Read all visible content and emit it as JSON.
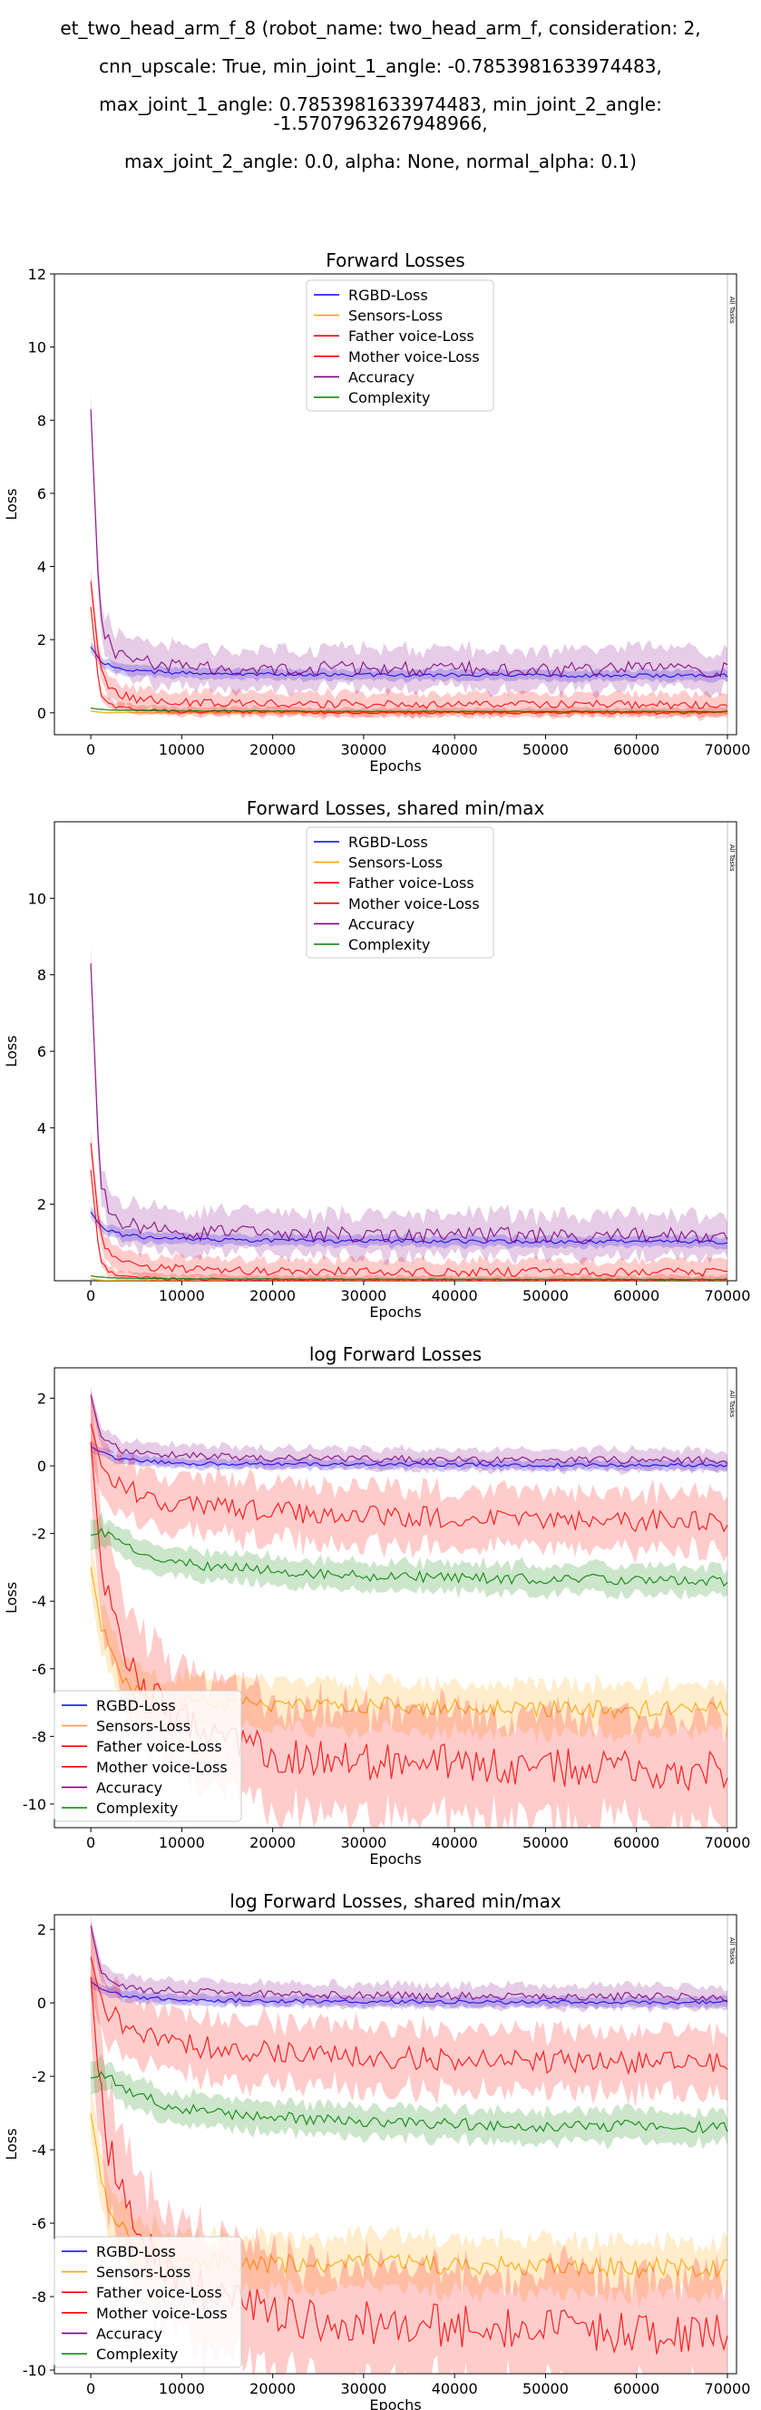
{
  "page": {
    "title_lines": [
      "et_two_head_arm_f_8 (robot_name: two_head_arm_f, consideration: 2,",
      "cnn_upscale: True, min_joint_1_angle: -0.7853981633974483,",
      "max_joint_1_angle: 0.7853981633974483, min_joint_2_angle: -1.5707963267948966,",
      "max_joint_2_angle: 0.0, alpha: None, normal_alpha: 0.1)"
    ]
  },
  "colors": {
    "RGBD-Loss": "#0000ff",
    "Sensors-Loss": "#ffa500",
    "Father voice-Loss": "#ff0000",
    "Mother voice-Loss": "#ff0000",
    "Accuracy": "#800080",
    "Complexity": "#008000"
  },
  "chart_data": [
    {
      "type": "line",
      "title": "Forward Losses",
      "xlabel": "Epochs",
      "ylabel": "Loss",
      "xlim": [
        -4000,
        71000
      ],
      "ylim": [
        -0.6,
        12
      ],
      "xticks": [
        0,
        10000,
        20000,
        30000,
        40000,
        50000,
        60000,
        70000
      ],
      "yticks": [
        0,
        2,
        4,
        6,
        8,
        10,
        12
      ],
      "log": false,
      "legend_placement": "top-center",
      "vline": {
        "x": 70000,
        "label": "All Tasks"
      },
      "series": [
        {
          "name": "RGBD-Loss",
          "x": [
            0,
            1000,
            2000,
            3000,
            5000,
            8000,
            12000,
            20000,
            30000,
            40000,
            50000,
            60000,
            70000
          ],
          "values": [
            1.8,
            1.45,
            1.3,
            1.22,
            1.15,
            1.1,
            1.07,
            1.05,
            1.04,
            1.03,
            1.02,
            1.02,
            1.02
          ],
          "band": 0.12
        },
        {
          "name": "Sensors-Loss",
          "x": [
            0,
            1000,
            3000,
            10000,
            30000,
            50000,
            70000
          ],
          "values": [
            0.05,
            0.01,
            0.003,
            0.001,
            0.001,
            0.001,
            0.001
          ],
          "band": 0.02
        },
        {
          "name": "Father voice-Loss",
          "x": [
            0,
            1000,
            2000,
            3000,
            5000,
            10000,
            20000,
            30000,
            40000,
            50000,
            60000,
            70000
          ],
          "values": [
            3.6,
            1.2,
            0.7,
            0.5,
            0.38,
            0.3,
            0.26,
            0.24,
            0.23,
            0.23,
            0.22,
            0.22
          ],
          "band": 0.25
        },
        {
          "name": "Mother voice-Loss",
          "x": [
            0,
            1000,
            2000,
            3000,
            5000,
            10000,
            20000,
            30000,
            40000,
            50000,
            60000,
            70000
          ],
          "values": [
            2.9,
            0.5,
            0.25,
            0.15,
            0.08,
            0.04,
            0.02,
            0.01,
            0.01,
            0.01,
            0.01,
            0.01
          ],
          "band": 0.1
        },
        {
          "name": "Accuracy",
          "x": [
            0,
            1000,
            2000,
            3000,
            5000,
            8000,
            12000,
            20000,
            30000,
            40000,
            50000,
            60000,
            70000
          ],
          "values": [
            8.3,
            2.6,
            1.9,
            1.6,
            1.4,
            1.3,
            1.25,
            1.22,
            1.2,
            1.2,
            1.19,
            1.19,
            1.18
          ],
          "band": 0.45
        },
        {
          "name": "Complexity",
          "x": [
            0,
            1000,
            3000,
            10000,
            30000,
            50000,
            70000
          ],
          "values": [
            0.13,
            0.09,
            0.07,
            0.05,
            0.04,
            0.035,
            0.03
          ],
          "band": 0.02
        }
      ]
    },
    {
      "type": "line",
      "title": "Forward Losses, shared min/max",
      "xlabel": "Epochs",
      "ylabel": "Loss",
      "xlim": [
        -4000,
        71000
      ],
      "ylim": [
        0,
        12
      ],
      "xticks": [
        0,
        10000,
        20000,
        30000,
        40000,
        50000,
        60000,
        70000
      ],
      "yticks": [
        2,
        4,
        6,
        8,
        10
      ],
      "log": false,
      "legend_placement": "top-center",
      "vline": {
        "x": 70000,
        "label": "All Tasks"
      },
      "series": [
        {
          "name": "RGBD-Loss",
          "x": [
            0,
            1000,
            2000,
            3000,
            5000,
            8000,
            12000,
            20000,
            30000,
            40000,
            50000,
            60000,
            70000
          ],
          "values": [
            1.8,
            1.45,
            1.3,
            1.22,
            1.15,
            1.1,
            1.07,
            1.05,
            1.04,
            1.03,
            1.02,
            1.02,
            1.02
          ],
          "band": 0.12
        },
        {
          "name": "Sensors-Loss",
          "x": [
            0,
            1000,
            3000,
            10000,
            30000,
            50000,
            70000
          ],
          "values": [
            0.05,
            0.01,
            0.003,
            0.001,
            0.001,
            0.001,
            0.001
          ],
          "band": 0.02
        },
        {
          "name": "Father voice-Loss",
          "x": [
            0,
            1000,
            2000,
            3000,
            5000,
            10000,
            20000,
            30000,
            40000,
            50000,
            60000,
            70000
          ],
          "values": [
            3.6,
            1.2,
            0.7,
            0.5,
            0.38,
            0.3,
            0.26,
            0.24,
            0.23,
            0.23,
            0.22,
            0.22
          ],
          "band": 0.25
        },
        {
          "name": "Mother voice-Loss",
          "x": [
            0,
            1000,
            2000,
            3000,
            5000,
            10000,
            20000,
            30000,
            40000,
            50000,
            60000,
            70000
          ],
          "values": [
            2.9,
            0.5,
            0.25,
            0.15,
            0.08,
            0.04,
            0.02,
            0.01,
            0.01,
            0.01,
            0.01,
            0.01
          ],
          "band": 0.1
        },
        {
          "name": "Accuracy",
          "x": [
            0,
            1000,
            2000,
            3000,
            5000,
            8000,
            12000,
            20000,
            30000,
            40000,
            50000,
            60000,
            70000
          ],
          "values": [
            8.3,
            2.6,
            1.9,
            1.6,
            1.4,
            1.3,
            1.25,
            1.22,
            1.2,
            1.2,
            1.19,
            1.19,
            1.18
          ],
          "band": 0.45
        },
        {
          "name": "Complexity",
          "x": [
            0,
            1000,
            3000,
            10000,
            30000,
            50000,
            70000
          ],
          "values": [
            0.13,
            0.09,
            0.07,
            0.05,
            0.04,
            0.035,
            0.03
          ],
          "band": 0.02
        }
      ]
    },
    {
      "type": "line",
      "title": "log Forward Losses",
      "xlabel": "Epochs",
      "ylabel": "Loss",
      "xlim": [
        -4000,
        71000
      ],
      "ylim": [
        -10.7,
        2.9
      ],
      "xticks": [
        0,
        10000,
        20000,
        30000,
        40000,
        50000,
        60000,
        70000
      ],
      "yticks": [
        -10,
        -8,
        -6,
        -4,
        -2,
        0,
        2
      ],
      "log": true,
      "legend_placement": "lower-left",
      "vline": {
        "x": 70000,
        "label": "All Tasks"
      },
      "series": [
        {
          "name": "RGBD-Loss",
          "x": [
            0,
            1000,
            2000,
            3000,
            5000,
            10000,
            20000,
            30000,
            40000,
            50000,
            60000,
            70000
          ],
          "values": [
            0.58,
            0.4,
            0.3,
            0.22,
            0.15,
            0.08,
            0.05,
            0.04,
            0.03,
            0.02,
            0.02,
            0.02
          ],
          "band": 0.12
        },
        {
          "name": "Sensors-Loss",
          "x": [
            0,
            1000,
            2000,
            3000,
            5000,
            8000,
            12000,
            20000,
            30000,
            40000,
            50000,
            60000,
            70000
          ],
          "values": [
            -3.0,
            -4.5,
            -5.5,
            -6.1,
            -6.6,
            -6.9,
            -7.0,
            -7.1,
            -7.1,
            -7.15,
            -7.2,
            -7.2,
            -7.2
          ],
          "band": 0.6
        },
        {
          "name": "Father voice-Loss",
          "x": [
            0,
            1000,
            2000,
            3000,
            5000,
            8000,
            12000,
            20000,
            30000,
            40000,
            50000,
            60000,
            70000
          ],
          "values": [
            1.25,
            0.2,
            -0.2,
            -0.5,
            -0.8,
            -1.05,
            -1.2,
            -1.35,
            -1.45,
            -1.55,
            -1.6,
            -1.62,
            -1.65
          ],
          "band": 0.7
        },
        {
          "name": "Mother voice-Loss",
          "x": [
            0,
            1000,
            2000,
            3000,
            4000,
            6000,
            8000,
            12000,
            16000,
            20000,
            30000,
            40000,
            50000,
            60000,
            70000
          ],
          "values": [
            0.7,
            -2.5,
            -4.0,
            -5.0,
            -5.7,
            -6.6,
            -7.2,
            -7.8,
            -8.2,
            -8.5,
            -8.7,
            -8.8,
            -8.9,
            -9.0,
            -9.05
          ],
          "band": 1.3
        },
        {
          "name": "Accuracy",
          "x": [
            0,
            1000,
            2000,
            3000,
            5000,
            10000,
            20000,
            30000,
            40000,
            50000,
            60000,
            70000
          ],
          "values": [
            2.1,
            0.95,
            0.65,
            0.5,
            0.38,
            0.3,
            0.24,
            0.21,
            0.19,
            0.18,
            0.17,
            0.16
          ],
          "band": 0.25
        },
        {
          "name": "Complexity",
          "x": [
            0,
            1000,
            2000,
            3000,
            5000,
            8000,
            12000,
            20000,
            30000,
            40000,
            50000,
            60000,
            70000
          ],
          "values": [
            -2.05,
            -2.0,
            -2.05,
            -2.2,
            -2.5,
            -2.75,
            -2.95,
            -3.1,
            -3.25,
            -3.3,
            -3.35,
            -3.35,
            -3.4
          ],
          "band": 0.35
        }
      ]
    },
    {
      "type": "line",
      "title": "log Forward Losses, shared min/max",
      "xlabel": "Epochs",
      "ylabel": "Loss",
      "xlim": [
        -4000,
        71000
      ],
      "ylim": [
        -10.1,
        2.4
      ],
      "xticks": [
        0,
        10000,
        20000,
        30000,
        40000,
        50000,
        60000,
        70000
      ],
      "yticks": [
        -10,
        -8,
        -6,
        -4,
        -2,
        0,
        2
      ],
      "log": true,
      "legend_placement": "lower-left",
      "vline": {
        "x": 70000,
        "label": "All Tasks"
      },
      "series": [
        {
          "name": "RGBD-Loss",
          "x": [
            0,
            1000,
            2000,
            3000,
            5000,
            10000,
            20000,
            30000,
            40000,
            50000,
            60000,
            70000
          ],
          "values": [
            0.58,
            0.4,
            0.3,
            0.22,
            0.15,
            0.08,
            0.05,
            0.04,
            0.03,
            0.02,
            0.02,
            0.02
          ],
          "band": 0.12
        },
        {
          "name": "Sensors-Loss",
          "x": [
            0,
            1000,
            2000,
            3000,
            5000,
            8000,
            12000,
            20000,
            30000,
            40000,
            50000,
            60000,
            70000
          ],
          "values": [
            -3.0,
            -4.5,
            -5.5,
            -6.1,
            -6.6,
            -6.9,
            -7.0,
            -7.1,
            -7.1,
            -7.15,
            -7.2,
            -7.2,
            -7.2
          ],
          "band": 0.6
        },
        {
          "name": "Father voice-Loss",
          "x": [
            0,
            1000,
            2000,
            3000,
            5000,
            8000,
            12000,
            20000,
            30000,
            40000,
            50000,
            60000,
            70000
          ],
          "values": [
            1.25,
            0.2,
            -0.2,
            -0.5,
            -0.8,
            -1.05,
            -1.2,
            -1.35,
            -1.45,
            -1.55,
            -1.6,
            -1.62,
            -1.65
          ],
          "band": 0.7
        },
        {
          "name": "Mother voice-Loss",
          "x": [
            0,
            1000,
            2000,
            3000,
            4000,
            6000,
            8000,
            12000,
            16000,
            20000,
            30000,
            40000,
            50000,
            60000,
            70000
          ],
          "values": [
            0.7,
            -2.5,
            -4.0,
            -5.0,
            -5.7,
            -6.6,
            -7.2,
            -7.8,
            -8.2,
            -8.5,
            -8.7,
            -8.8,
            -8.9,
            -9.0,
            -9.05
          ],
          "band": 1.3
        },
        {
          "name": "Accuracy",
          "x": [
            0,
            1000,
            2000,
            3000,
            5000,
            10000,
            20000,
            30000,
            40000,
            50000,
            60000,
            70000
          ],
          "values": [
            2.1,
            0.95,
            0.65,
            0.5,
            0.38,
            0.3,
            0.24,
            0.21,
            0.19,
            0.18,
            0.17,
            0.16
          ],
          "band": 0.25
        },
        {
          "name": "Complexity",
          "x": [
            0,
            1000,
            2000,
            3000,
            5000,
            8000,
            12000,
            20000,
            30000,
            40000,
            50000,
            60000,
            70000
          ],
          "values": [
            -2.05,
            -2.0,
            -2.05,
            -2.2,
            -2.5,
            -2.75,
            -2.95,
            -3.1,
            -3.25,
            -3.3,
            -3.35,
            -3.35,
            -3.4
          ],
          "band": 0.35
        }
      ]
    }
  ]
}
